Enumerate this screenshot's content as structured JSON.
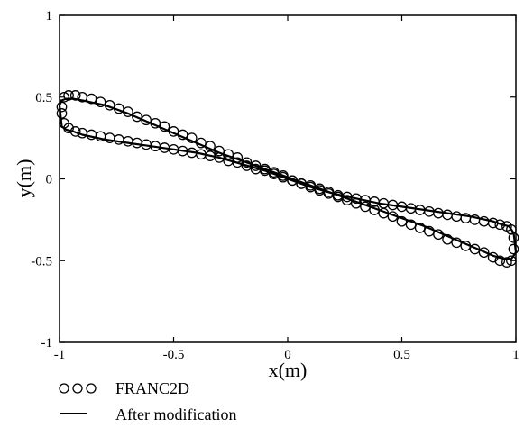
{
  "chart_data": {
    "type": "scatter",
    "xlabel": "x(m)",
    "ylabel": "y(m)",
    "xlim": [
      -1,
      1
    ],
    "ylim": [
      -1,
      1
    ],
    "x_ticks": [
      -1,
      -0.5,
      0,
      0.5,
      1
    ],
    "x_tick_labels": [
      "-1",
      "-0.5",
      "0",
      "0.5",
      "1"
    ],
    "y_ticks": [
      -1,
      -0.5,
      0,
      0.5,
      1
    ],
    "y_tick_labels": [
      "-1",
      "-0.5",
      "0",
      "0.5",
      "1"
    ],
    "grid": false,
    "legend_position": "bottom-left",
    "series": [
      {
        "name": "FRANC2D",
        "marker": "open-circle",
        "x": [
          -0.99,
          -0.98,
          -0.96,
          -0.93,
          -0.9,
          -0.86,
          -0.82,
          -0.78,
          -0.74,
          -0.7,
          -0.66,
          -0.62,
          -0.58,
          -0.54,
          -0.5,
          -0.46,
          -0.42,
          -0.38,
          -0.34,
          -0.3,
          -0.26,
          -0.22,
          -0.18,
          -0.14,
          -0.1,
          -0.06,
          -0.02,
          0.02,
          0.06,
          0.1,
          0.14,
          0.18,
          0.22,
          0.26,
          0.3,
          0.34,
          0.38,
          0.42,
          0.46,
          0.5,
          0.54,
          0.58,
          0.62,
          0.66,
          0.7,
          0.74,
          0.78,
          0.82,
          0.86,
          0.9,
          0.93,
          0.96,
          0.98,
          0.99,
          0.99,
          0.98,
          0.96,
          0.93,
          0.9,
          0.86,
          0.82,
          0.78,
          0.74,
          0.7,
          0.66,
          0.62,
          0.58,
          0.54,
          0.5,
          0.46,
          0.42,
          0.38,
          0.34,
          0.3,
          0.26,
          0.22,
          0.18,
          0.14,
          0.1,
          0.06,
          0.02,
          -0.02,
          -0.06,
          -0.1,
          -0.14,
          -0.18,
          -0.22,
          -0.26,
          -0.3,
          -0.34,
          -0.38,
          -0.42,
          -0.46,
          -0.5,
          -0.54,
          -0.58,
          -0.62,
          -0.66,
          -0.7,
          -0.74,
          -0.78,
          -0.82,
          -0.86,
          -0.9,
          -0.93,
          -0.96,
          -0.98,
          -0.99
        ],
        "y": [
          0.44,
          0.5,
          0.51,
          0.51,
          0.5,
          0.49,
          0.47,
          0.45,
          0.43,
          0.41,
          0.38,
          0.36,
          0.34,
          0.32,
          0.29,
          0.27,
          0.25,
          0.22,
          0.2,
          0.17,
          0.15,
          0.13,
          0.1,
          0.08,
          0.06,
          0.04,
          0.02,
          -0.01,
          -0.03,
          -0.05,
          -0.07,
          -0.09,
          -0.11,
          -0.13,
          -0.15,
          -0.17,
          -0.19,
          -0.21,
          -0.23,
          -0.26,
          -0.28,
          -0.3,
          -0.32,
          -0.34,
          -0.37,
          -0.39,
          -0.41,
          -0.43,
          -0.45,
          -0.48,
          -0.5,
          -0.51,
          -0.5,
          -0.43,
          -0.36,
          -0.31,
          -0.29,
          -0.28,
          -0.27,
          -0.26,
          -0.25,
          -0.24,
          -0.23,
          -0.22,
          -0.21,
          -0.2,
          -0.19,
          -0.18,
          -0.17,
          -0.16,
          -0.15,
          -0.14,
          -0.13,
          -0.12,
          -0.11,
          -0.1,
          -0.08,
          -0.06,
          -0.04,
          -0.03,
          -0.01,
          0.01,
          0.03,
          0.05,
          0.06,
          0.08,
          0.1,
          0.11,
          0.13,
          0.14,
          0.15,
          0.16,
          0.17,
          0.18,
          0.19,
          0.2,
          0.21,
          0.22,
          0.23,
          0.24,
          0.25,
          0.26,
          0.27,
          0.28,
          0.29,
          0.31,
          0.34,
          0.4
        ]
      },
      {
        "name": "After modification",
        "marker": "solid-line",
        "x": [
          -1.0,
          -0.99,
          -0.97,
          -0.94,
          -0.9,
          -0.8,
          -0.7,
          -0.6,
          -0.5,
          -0.4,
          -0.3,
          -0.2,
          -0.1,
          0.0,
          0.1,
          0.2,
          0.3,
          0.4,
          0.5,
          0.6,
          0.7,
          0.8,
          0.9,
          0.95,
          0.98,
          1.0,
          0.99,
          0.97,
          0.94,
          0.9,
          0.8,
          0.7,
          0.6,
          0.5,
          0.4,
          0.3,
          0.2,
          0.1,
          0.0,
          -0.1,
          -0.2,
          -0.3,
          -0.4,
          -0.5,
          -0.6,
          -0.7,
          -0.8,
          -0.9,
          -0.94,
          -0.97,
          -0.99,
          -1.0
        ],
        "y": [
          0.45,
          0.48,
          0.49,
          0.49,
          0.48,
          0.45,
          0.4,
          0.34,
          0.28,
          0.22,
          0.16,
          0.11,
          0.06,
          0.01,
          -0.04,
          -0.09,
          -0.14,
          -0.19,
          -0.24,
          -0.29,
          -0.35,
          -0.41,
          -0.47,
          -0.49,
          -0.49,
          -0.45,
          -0.33,
          -0.29,
          -0.28,
          -0.26,
          -0.23,
          -0.21,
          -0.19,
          -0.17,
          -0.15,
          -0.12,
          -0.09,
          -0.05,
          0.0,
          0.05,
          0.09,
          0.13,
          0.16,
          0.18,
          0.2,
          0.22,
          0.24,
          0.27,
          0.29,
          0.3,
          0.32,
          0.45
        ]
      }
    ]
  }
}
